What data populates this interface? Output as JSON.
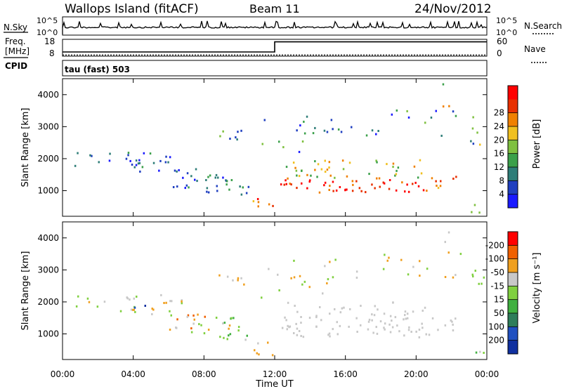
{
  "header": {
    "station": "Wallops Island (fitACF)",
    "beam": "Beam 11",
    "date": "24/Nov/2012"
  },
  "panels": {
    "nsky": {
      "left_label": "N.Sky",
      "right_label": "N.Search",
      "left_ticks": [
        "10^5",
        "10^0"
      ],
      "right_ticks": [
        "10^5",
        "10^0"
      ]
    },
    "freq": {
      "left_label": "Freq.",
      "left_unit": "[MHz]",
      "cpid_label": "CPID",
      "right_label": "Nave",
      "left_ticks": [
        "18",
        "8"
      ],
      "right_ticks": [
        "60",
        "0"
      ]
    },
    "program": "tau (fast) 503"
  },
  "axes": {
    "xlabel": "Time UT",
    "xticks": [
      "00:00",
      "04:00",
      "08:00",
      "12:00",
      "16:00",
      "20:00",
      "00:00"
    ],
    "ylabel": "Slant Range [km]",
    "yticks": [
      "1000",
      "2000",
      "3000",
      "4000"
    ]
  },
  "colorbars": {
    "power": {
      "label": "Power [dB]",
      "ticks": [
        "4",
        "8",
        "12",
        "16",
        "20",
        "24",
        "28"
      ],
      "colors": [
        "#1a1aff",
        "#2040c0",
        "#2e7d78",
        "#3ba04a",
        "#7fc040",
        "#f0c020",
        "#f08000",
        "#e83000",
        "#ff0000"
      ]
    },
    "velocity": {
      "label": "Velocity [m s⁻¹]",
      "ticks": [
        "200",
        "100",
        "50",
        "15",
        "-15",
        "-50",
        "-100",
        "-200"
      ],
      "colors": [
        "#1030a0",
        "#2050c0",
        "#2e7d5a",
        "#40b040",
        "#80d040",
        "#c8c8c8",
        "#f0a020",
        "#f06000",
        "#ff0000"
      ]
    }
  },
  "chart_data": {
    "type": "heatmap",
    "x_range": [
      "00:00",
      "24:00"
    ],
    "y_range": [
      200,
      4500
    ],
    "series": [
      {
        "name": "Power [dB]",
        "value_range": [
          0,
          30
        ]
      },
      {
        "name": "Velocity [m s⁻¹]",
        "value_range": [
          -250,
          250
        ]
      }
    ],
    "frequency_steps": [
      {
        "from": "00:00",
        "to": "12:00",
        "value": 10.5
      },
      {
        "from": "12:00",
        "to": "24:00",
        "value": 16.5
      }
    ],
    "nave_level": 4
  }
}
